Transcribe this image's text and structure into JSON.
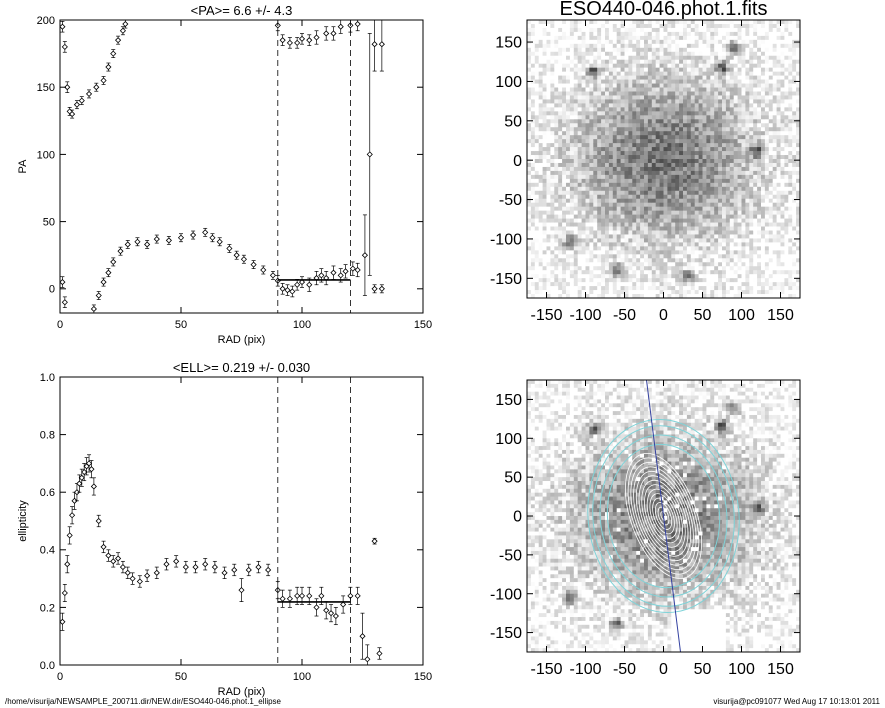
{
  "chart_data": [
    {
      "type": "scatter",
      "title": "<PA>=   6.6 +/-   4.3",
      "xlabel": "RAD (pix)",
      "ylabel": "PA",
      "xlim": [
        0,
        150
      ],
      "ylim": [
        -18,
        200
      ],
      "xticks": [
        0,
        50,
        100,
        150
      ],
      "yticks": [
        0,
        50,
        100,
        150,
        200
      ],
      "reference_lines": [
        90,
        120
      ],
      "mean_line": {
        "value": 6.6,
        "x": [
          90,
          120
        ]
      },
      "color": "#000000",
      "x": [
        1,
        2,
        3,
        4,
        5,
        7,
        9,
        12,
        15,
        18,
        20,
        22,
        24,
        26,
        27,
        1,
        2,
        14,
        16,
        18,
        20,
        22,
        25,
        28,
        32,
        36,
        40,
        45,
        50,
        55,
        60,
        63,
        66,
        70,
        73,
        76,
        80,
        84,
        88,
        90,
        92,
        94,
        96,
        98,
        100,
        103,
        106,
        108,
        110,
        113,
        116,
        118,
        121,
        123,
        90,
        92,
        95,
        98,
        100,
        103,
        106,
        110,
        113,
        116,
        120,
        123,
        126,
        128,
        130,
        133,
        130,
        133
      ],
      "values": [
        195,
        180,
        150,
        132,
        130,
        137,
        140,
        145,
        150,
        155,
        165,
        175,
        185,
        192,
        197,
        5,
        -10,
        -15,
        -5,
        5,
        12,
        20,
        28,
        33,
        35,
        33,
        37,
        36,
        38,
        40,
        42,
        38,
        35,
        30,
        25,
        22,
        18,
        14,
        10,
        6,
        0,
        -1,
        -2,
        3,
        5,
        3,
        8,
        10,
        8,
        12,
        10,
        13,
        15,
        14,
        196,
        185,
        183,
        183,
        186,
        185,
        187,
        190,
        190,
        195,
        196,
        197,
        25,
        100,
        182,
        182,
        0,
        0
      ],
      "errors": [
        4,
        4,
        4,
        3,
        3,
        3,
        3,
        3,
        3,
        3,
        3,
        3,
        3,
        3,
        3,
        4,
        4,
        3,
        3,
        3,
        3,
        3,
        3,
        3,
        3,
        3,
        3,
        3,
        3,
        3,
        3,
        3,
        3,
        3,
        3,
        3,
        3,
        3,
        3,
        4,
        4,
        4,
        4,
        4,
        4,
        5,
        5,
        5,
        5,
        5,
        5,
        5,
        5,
        5,
        4,
        4,
        4,
        4,
        4,
        4,
        5,
        5,
        5,
        5,
        5,
        5,
        30,
        90,
        20,
        20,
        3,
        3
      ]
    },
    {
      "type": "scatter",
      "title": "<ELL>= 0.219 +/-  0.030",
      "xlabel": "RAD (pix)",
      "ylabel": "ellipticity",
      "xlim": [
        0,
        150
      ],
      "ylim": [
        0,
        1
      ],
      "xticks": [
        0,
        50,
        100,
        150
      ],
      "yticks": [
        {
          "value": 0,
          "label": "0.0"
        },
        0.2,
        0.4,
        0.6,
        0.8,
        {
          "value": 1,
          "label": "1.0"
        }
      ],
      "reference_lines": [
        90,
        120
      ],
      "mean_line": {
        "value": 0.219,
        "x": [
          90,
          120
        ]
      },
      "color": "#000000",
      "x": [
        1,
        2,
        3,
        4,
        5,
        6,
        7,
        8,
        9,
        10,
        11,
        12,
        13,
        14,
        16,
        18,
        20,
        22,
        24,
        26,
        28,
        30,
        33,
        36,
        40,
        44,
        48,
        52,
        56,
        60,
        64,
        68,
        72,
        75,
        78,
        82,
        86,
        90,
        92,
        95,
        98,
        100,
        103,
        106,
        108,
        110,
        112,
        114,
        117,
        120,
        123,
        125,
        127,
        130,
        132
      ],
      "values": [
        0.15,
        0.25,
        0.35,
        0.45,
        0.52,
        0.57,
        0.6,
        0.63,
        0.65,
        0.67,
        0.69,
        0.7,
        0.68,
        0.62,
        0.5,
        0.41,
        0.38,
        0.36,
        0.37,
        0.34,
        0.32,
        0.3,
        0.29,
        0.31,
        0.32,
        0.35,
        0.36,
        0.34,
        0.34,
        0.35,
        0.34,
        0.32,
        0.33,
        0.26,
        0.33,
        0.34,
        0.33,
        0.26,
        0.23,
        0.23,
        0.24,
        0.24,
        0.24,
        0.2,
        0.24,
        0.19,
        0.18,
        0.17,
        0.21,
        0.24,
        0.24,
        0.1,
        0.02,
        0.43,
        0.04
      ],
      "errors": [
        0.03,
        0.03,
        0.03,
        0.03,
        0.03,
        0.03,
        0.03,
        0.03,
        0.03,
        0.03,
        0.03,
        0.03,
        0.03,
        0.03,
        0.02,
        0.02,
        0.02,
        0.02,
        0.02,
        0.02,
        0.02,
        0.02,
        0.02,
        0.02,
        0.02,
        0.02,
        0.02,
        0.02,
        0.02,
        0.02,
        0.02,
        0.02,
        0.02,
        0.04,
        0.02,
        0.02,
        0.02,
        0.03,
        0.03,
        0.03,
        0.03,
        0.03,
        0.03,
        0.03,
        0.03,
        0.03,
        0.03,
        0.03,
        0.03,
        0.03,
        0.03,
        0.08,
        0.05,
        0.01,
        0.02
      ]
    },
    {
      "type": "image",
      "title": "ESO440-046.phot.1.fits",
      "xlim": [
        -175,
        175
      ],
      "ylim": [
        -175,
        178
      ],
      "xticks": [
        -150,
        -100,
        -50,
        0,
        50,
        100,
        150
      ],
      "yticks": [
        -150,
        -100,
        -50,
        0,
        50,
        100,
        150
      ]
    },
    {
      "type": "image",
      "contours": true,
      "xlim": [
        -175,
        175
      ],
      "ylim": [
        -175,
        175
      ],
      "xticks": [
        -150,
        -100,
        -50,
        0,
        50,
        100,
        150
      ],
      "yticks": [
        -150,
        -100,
        -50,
        0,
        50,
        100,
        150
      ]
    }
  ],
  "footer": {
    "path": "/home/visurija/NEWSAMPLE_200711.dir/NEW.dir/ESO440-046.phot.1_ellipse",
    "stamp": "visurija@pc091077  Wed Aug 17 10:13:01 2011"
  }
}
